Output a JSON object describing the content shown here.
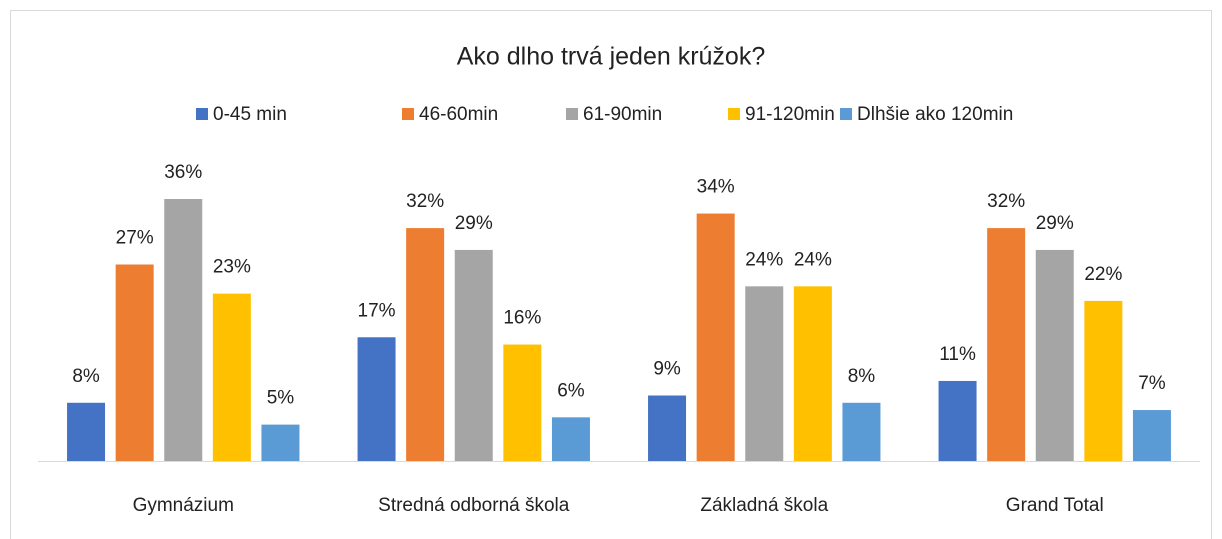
{
  "chart_data": {
    "type": "bar",
    "title": "Ako dlho trvá jeden krúžok?",
    "categories": [
      "Gymnázium",
      "Stredná odborná škola",
      "Základná škola",
      "Grand Total"
    ],
    "series": [
      {
        "name": "0-45 min",
        "color": "#4472c4",
        "values": [
          8,
          17,
          9,
          11
        ],
        "value_labels": [
          "8%",
          "17%",
          "9%",
          "11%"
        ]
      },
      {
        "name": "46-60min",
        "color": "#ed7d31",
        "values": [
          27,
          32,
          34,
          32
        ],
        "value_labels": [
          "27%",
          "32%",
          "34%",
          "32%"
        ]
      },
      {
        "name": "61-90min",
        "color": "#a5a5a5",
        "values": [
          36,
          29,
          24,
          29
        ],
        "value_labels": [
          "36%",
          "29%",
          "24%",
          "29%"
        ]
      },
      {
        "name": "91-120min",
        "color": "#ffc000",
        "values": [
          23,
          16,
          24,
          22
        ],
        "value_labels": [
          "23%",
          "16%",
          "24%",
          "22%"
        ]
      },
      {
        "name": "Dlhšie ako 120min",
        "color": "#5b9bd5",
        "values": [
          5,
          6,
          8,
          7
        ],
        "value_labels": [
          "5%",
          "6%",
          "8%",
          "7%"
        ]
      }
    ],
    "legend": "top"
  }
}
